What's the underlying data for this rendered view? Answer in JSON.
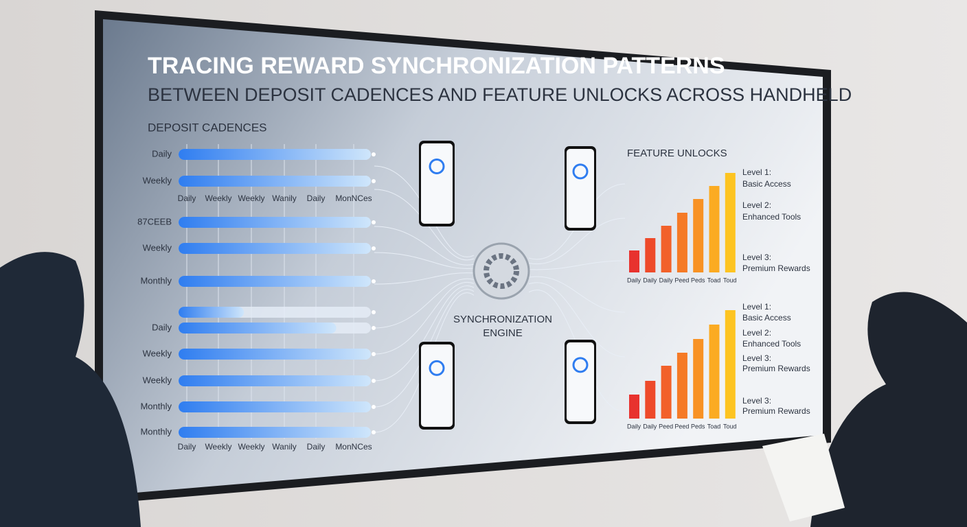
{
  "title": "TRACING REWARD SYNCHRONIZATION PATTERNS",
  "subtitle": "BETWEEN DEPOSIT CADENCES AND FEATURE UNLOCKS ACROSS HANDHELD",
  "engine_label": [
    "SYNCHRONIZATION",
    "ENGINE"
  ],
  "chart_data": [
    {
      "type": "hbar",
      "title": "DEPOSIT CADENCES",
      "categories": [
        "Daily",
        "Weekly",
        "87CEEB",
        "Weekly",
        "Monthly",
        null,
        "Daily",
        "Weekly",
        "Weekly",
        "Monthly",
        "Monthly"
      ],
      "values": [
        100,
        100,
        100,
        100,
        100,
        34,
        82,
        100,
        100,
        100,
        100
      ],
      "xlim": [
        0,
        100
      ],
      "axis_labels_top": [
        "Daily",
        "Weekly",
        "Weekly",
        "Wanily",
        "Daily",
        "MonNCes"
      ],
      "axis_labels_bottom": [
        "Daily",
        "Weekly",
        "Weekly",
        "Wanily",
        "Daily",
        "MonNCes"
      ],
      "color": "#2f7df0"
    },
    {
      "type": "bar",
      "title": "FEATURE UNLOCKS",
      "categories": [
        "Daily",
        "Daily",
        "Daily",
        "Peed",
        "Peds",
        "Toad",
        "Toud"
      ],
      "values": [
        32,
        50,
        68,
        87,
        107,
        126,
        145
      ],
      "ylim": [
        0,
        150
      ],
      "colors": [
        "#e8322e",
        "#ee4a2a",
        "#f2612a",
        "#f57a26",
        "#f89224",
        "#fbab22",
        "#fdc421"
      ],
      "levels": [
        {
          "level": "Level 1:",
          "name": "Basic Access"
        },
        {
          "level": "Level 2:",
          "name": "Enhanced Tools"
        },
        {
          "level": "Level 3:",
          "name": "Premium Rewards"
        }
      ]
    },
    {
      "type": "bar",
      "categories": [
        "Daily",
        "Daily",
        "Peed",
        "Peed",
        "Peds",
        "Toad",
        "Toud"
      ],
      "values": [
        35,
        55,
        77,
        96,
        116,
        137,
        158
      ],
      "ylim": [
        0,
        160
      ],
      "colors": [
        "#e8322e",
        "#ee4a2a",
        "#f2612a",
        "#f57a26",
        "#f89224",
        "#fbab22",
        "#fdc421"
      ],
      "levels": [
        {
          "level": "Level 1:",
          "name": "Basic Access"
        },
        {
          "level": "Level 2:",
          "name": "Enhanced Tools"
        },
        {
          "level": "Level 3:",
          "name": "Premium Rewards"
        },
        {
          "level": "Level 3:",
          "name": "Premium Rewards"
        }
      ]
    }
  ]
}
